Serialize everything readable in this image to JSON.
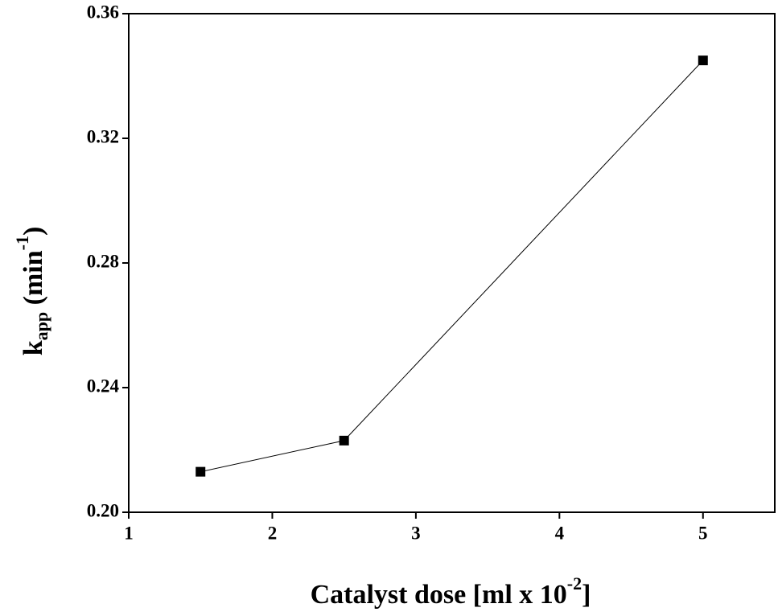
{
  "chart_data": {
    "type": "line",
    "x": [
      1.5,
      2.5,
      5
    ],
    "values": [
      0.213,
      0.223,
      0.345
    ],
    "color": "#000000",
    "marker": "square",
    "xlim": [
      1,
      5.5
    ],
    "xticks": [
      1,
      2,
      3,
      4,
      5
    ],
    "ylim": [
      0.2,
      0.36
    ],
    "yticks": [
      {
        "value": 0.2,
        "label": "0.20"
      },
      0.24,
      0.28,
      0.32,
      0.36
    ],
    "xlabel": {
      "text": "Catalyst dose [ml x 10",
      "sup": "-2",
      "end": "]"
    },
    "ylabel": {
      "text": "k",
      "sub": "app",
      "mid": " (min",
      "sup": "-1",
      "end": ")"
    },
    "grid": false
  }
}
